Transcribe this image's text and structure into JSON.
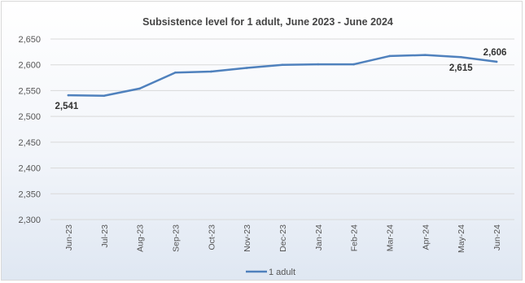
{
  "chart_data": {
    "type": "line",
    "title": "Subsistence level for 1 adult, June 2023 - June 2024",
    "xlabel": "",
    "ylabel": "",
    "categories": [
      "Jun-23",
      "Jul-23",
      "Aug-23",
      "Sep-23",
      "Oct-23",
      "Nov-23",
      "Dec-23",
      "Jan-24",
      "Feb-24",
      "Mar-24",
      "Apr-24",
      "May-24",
      "Jun-24"
    ],
    "series": [
      {
        "name": "1 adult",
        "values": [
          2541,
          2540,
          2554,
          2585,
          2587,
          2594,
          2600,
          2601,
          2601,
          2617,
          2619,
          2615,
          2606
        ],
        "color": "#4f81bd"
      }
    ],
    "ylim": [
      2300,
      2650
    ],
    "yticks": [
      2300,
      2350,
      2400,
      2450,
      2500,
      2550,
      2600,
      2650
    ],
    "ytick_labels": [
      "2,300",
      "2,350",
      "2,400",
      "2,450",
      "2,500",
      "2,550",
      "2,600",
      "2,650"
    ],
    "data_labels": [
      {
        "index": 0,
        "text": "2,541",
        "placement": "below"
      },
      {
        "index": 11,
        "text": "2,615",
        "placement": "below"
      },
      {
        "index": 12,
        "text": "2,606",
        "placement": "above"
      }
    ],
    "grid": true,
    "legend_position": "bottom"
  }
}
